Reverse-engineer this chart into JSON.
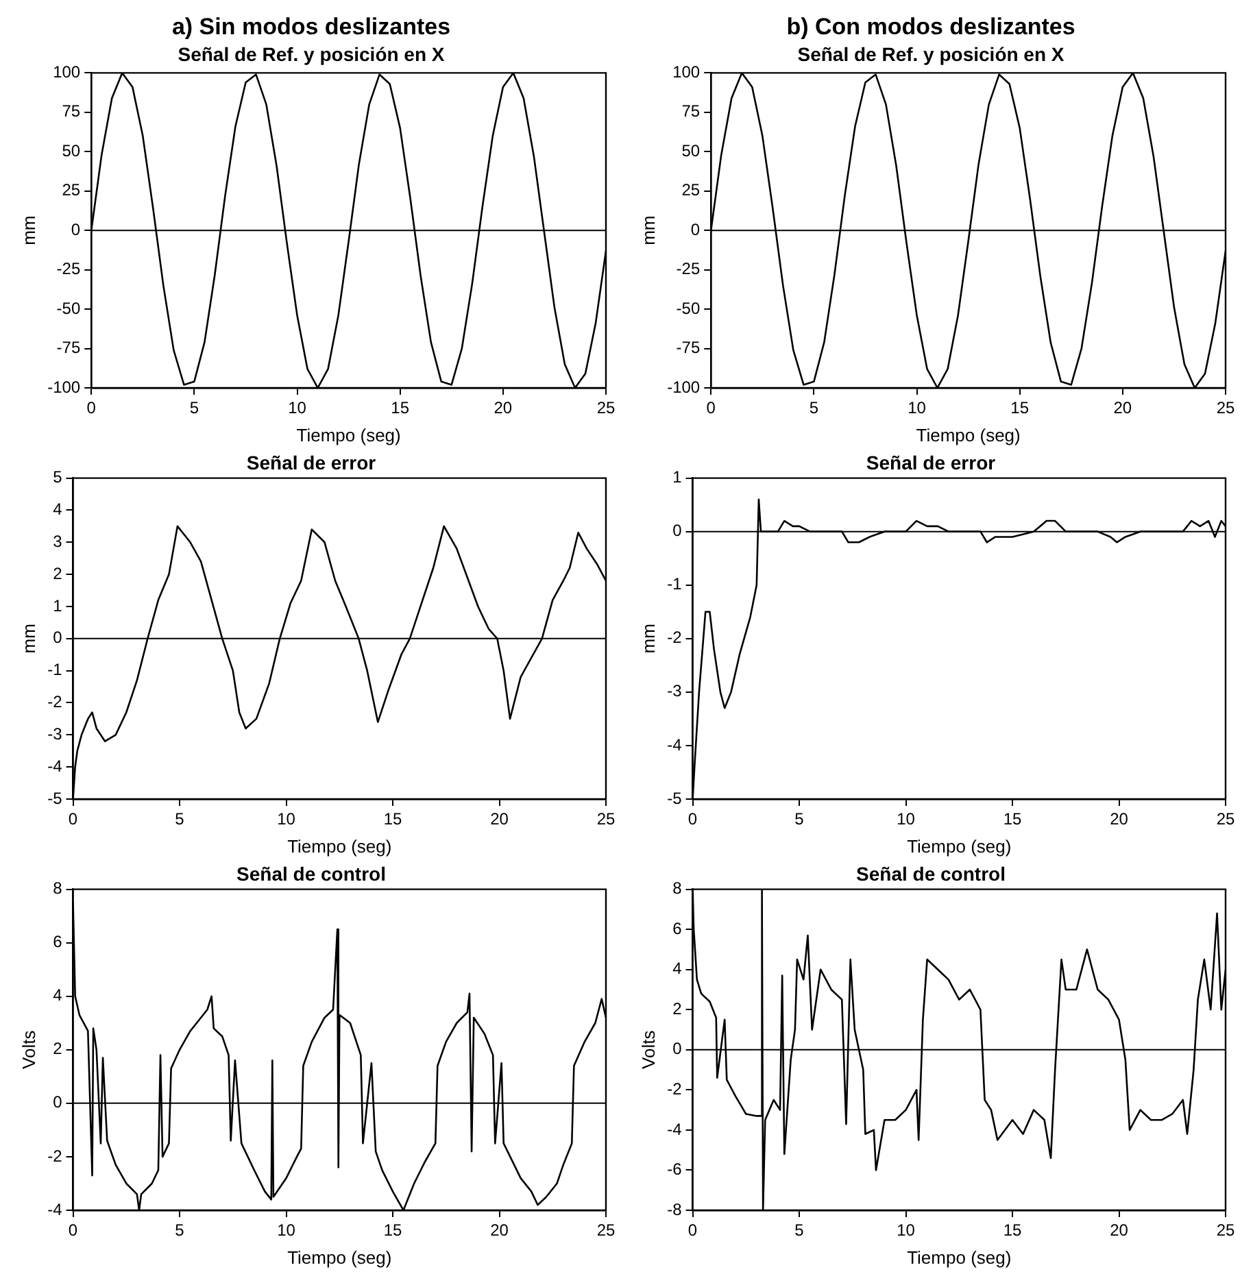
{
  "chart_data": [
    {
      "type": "line",
      "title": "a) Sin modos deslizantes",
      "subtitle": "Señal de Ref. y posición en X",
      "xlabel": "Tiempo (seg)",
      "ylabel": "mm",
      "xlim": [
        0,
        25
      ],
      "xticks": [
        0,
        5,
        10,
        15,
        20,
        25
      ],
      "ylim": [
        -100,
        100
      ],
      "yticks": [
        -100,
        -75,
        -50,
        -25,
        0,
        25,
        50,
        75,
        100
      ],
      "grid": false,
      "marker": "none",
      "line_style": "solid",
      "ref_lines": [
        {
          "axis": "y",
          "value": 0,
          "color": "#000000"
        }
      ],
      "x": [
        0,
        0.5,
        1,
        1.5,
        2,
        2.5,
        3,
        3.5,
        4,
        4.5,
        5,
        5.5,
        6,
        6.5,
        7,
        7.5,
        8,
        8.5,
        9,
        9.5,
        10,
        10.5,
        11,
        11.5,
        12,
        12.5,
        13,
        13.5,
        14,
        14.5,
        15,
        15.5,
        16,
        16.5,
        17,
        17.5,
        18,
        18.5,
        19,
        19.5,
        20,
        20.5,
        21,
        21.5,
        22,
        22.5,
        23,
        23.5,
        24,
        24.5,
        25
      ],
      "series": [
        {
          "color": "#000000",
          "values": [
            0,
            48,
            84,
            100,
            91,
            60,
            14,
            -35,
            -76,
            -98,
            -96,
            -71,
            -28,
            22,
            66,
            94,
            99,
            80,
            41,
            -8,
            -54,
            -88,
            -100,
            -88,
            -54,
            -7,
            42,
            80,
            99,
            93,
            65,
            20,
            -29,
            -71,
            -96,
            -98,
            -75,
            -34,
            15,
            60,
            91,
            100,
            84,
            47,
            -1,
            -49,
            -85,
            -100,
            -91,
            -59,
            -13
          ]
        }
      ]
    },
    {
      "type": "line",
      "title": "b) Con modos deslizantes",
      "subtitle": "Señal de Ref. y posición en X",
      "xlabel": "Tiempo (seg)",
      "ylabel": "mm",
      "xlim": [
        0,
        25
      ],
      "xticks": [
        0,
        5,
        10,
        15,
        20,
        25
      ],
      "ylim": [
        -100,
        100
      ],
      "yticks": [
        -100,
        -75,
        -50,
        -25,
        0,
        25,
        50,
        75,
        100
      ],
      "grid": false,
      "marker": "none",
      "line_style": "solid",
      "ref_lines": [
        {
          "axis": "y",
          "value": 0,
          "color": "#000000"
        }
      ],
      "x": [
        0,
        0.5,
        1,
        1.5,
        2,
        2.5,
        3,
        3.5,
        4,
        4.5,
        5,
        5.5,
        6,
        6.5,
        7,
        7.5,
        8,
        8.5,
        9,
        9.5,
        10,
        10.5,
        11,
        11.5,
        12,
        12.5,
        13,
        13.5,
        14,
        14.5,
        15,
        15.5,
        16,
        16.5,
        17,
        17.5,
        18,
        18.5,
        19,
        19.5,
        20,
        20.5,
        21,
        21.5,
        22,
        22.5,
        23,
        23.5,
        24,
        24.5,
        25
      ],
      "series": [
        {
          "color": "#000000",
          "values": [
            0,
            48,
            84,
            100,
            91,
            60,
            14,
            -35,
            -76,
            -98,
            -96,
            -71,
            -28,
            22,
            66,
            94,
            99,
            80,
            41,
            -8,
            -54,
            -88,
            -100,
            -88,
            -54,
            -7,
            42,
            80,
            99,
            93,
            65,
            20,
            -29,
            -71,
            -96,
            -98,
            -75,
            -34,
            15,
            60,
            91,
            100,
            84,
            47,
            -1,
            -49,
            -85,
            -100,
            -91,
            -59,
            -13
          ]
        }
      ]
    },
    {
      "type": "line",
      "title": "Señal de error",
      "xlabel": "Tiempo (seg)",
      "ylabel": "mm",
      "xlim": [
        0,
        25
      ],
      "xticks": [
        0,
        5,
        10,
        15,
        20,
        25
      ],
      "ylim": [
        -5,
        5
      ],
      "yticks": [
        -5,
        -4,
        -3,
        -2,
        -1,
        0,
        1,
        2,
        3,
        4,
        5
      ],
      "grid": false,
      "marker": "none",
      "line_style": "solid",
      "ref_lines": [
        {
          "axis": "y",
          "value": 0,
          "color": "#000000"
        }
      ],
      "x": [
        0,
        0.1,
        0.2,
        0.4,
        0.7,
        0.9,
        1.1,
        1.5,
        2,
        2.5,
        3,
        3.5,
        4,
        4.5,
        4.9,
        5.5,
        6,
        6.5,
        7,
        7.5,
        7.8,
        8.1,
        8.6,
        9.2,
        9.7,
        10.2,
        10.7,
        11.2,
        11.8,
        12.3,
        12.8,
        13.4,
        13.8,
        14.3,
        14.8,
        15.4,
        15.8,
        16.3,
        16.9,
        17.4,
        18,
        18.5,
        19,
        19.5,
        19.9,
        20.2,
        20.5,
        21,
        21.5,
        22,
        22.5,
        23,
        23.3,
        23.7,
        24.1,
        24.6,
        25
      ],
      "series": [
        {
          "color": "#000000",
          "values": [
            -5,
            -4,
            -3.5,
            -3,
            -2.5,
            -2.3,
            -2.8,
            -3.2,
            -3,
            -2.3,
            -1.3,
            0,
            1.2,
            2,
            3.5,
            3,
            2.4,
            1.2,
            0,
            -1,
            -2.3,
            -2.8,
            -2.5,
            -1.4,
            0,
            1.1,
            1.8,
            3.4,
            3,
            1.8,
            1,
            0,
            -1,
            -2.6,
            -1.6,
            -0.5,
            0,
            1,
            2.2,
            3.5,
            2.8,
            1.9,
            1,
            0.3,
            0,
            -1,
            -2.5,
            -1.2,
            -0.6,
            0,
            1.2,
            1.8,
            2.2,
            3.3,
            2.8,
            2.3,
            1.8
          ]
        }
      ]
    },
    {
      "type": "line",
      "title": "Señal de error",
      "xlabel": "Tiempo (seg)",
      "ylabel": "mm",
      "xlim": [
        0,
        25
      ],
      "xticks": [
        0,
        5,
        10,
        15,
        20,
        25
      ],
      "ylim": [
        -5,
        1
      ],
      "yticks": [
        -5,
        -4,
        -3,
        -2,
        -1,
        0,
        1
      ],
      "grid": false,
      "marker": "none",
      "line_style": "solid",
      "ref_lines": [
        {
          "axis": "y",
          "value": 0,
          "color": "#000000"
        }
      ],
      "x": [
        0,
        0.1,
        0.3,
        0.5,
        0.6,
        0.8,
        1,
        1.3,
        1.5,
        1.8,
        2.2,
        2.7,
        3,
        3.1,
        3.2,
        3.5,
        4,
        4.3,
        4.7,
        5,
        5.5,
        6,
        7,
        7.3,
        7.8,
        8.3,
        9,
        10,
        10.5,
        11,
        11.5,
        12,
        13,
        13.5,
        13.8,
        14.2,
        15,
        16,
        16.6,
        17,
        17.5,
        18,
        19,
        19.6,
        19.9,
        20.3,
        21,
        22,
        23,
        23.4,
        23.8,
        24.2,
        24.5,
        24.8,
        25
      ],
      "series": [
        {
          "color": "#000000",
          "values": [
            -5,
            -4.3,
            -3,
            -2,
            -1.5,
            -1.5,
            -2.2,
            -3,
            -3.3,
            -3,
            -2.3,
            -1.6,
            -1,
            0.6,
            0,
            0,
            0,
            0.2,
            0.1,
            0.1,
            0,
            0,
            0,
            -0.2,
            -0.2,
            -0.1,
            0,
            0,
            0.2,
            0.1,
            0.1,
            0,
            0,
            0,
            -0.2,
            -0.1,
            -0.1,
            0,
            0.2,
            0.2,
            0,
            0,
            0,
            -0.1,
            -0.2,
            -0.1,
            0,
            0,
            0,
            0.2,
            0.1,
            0.2,
            -0.1,
            0.2,
            0.1
          ]
        }
      ]
    },
    {
      "type": "line",
      "title": "Señal de control",
      "xlabel": "Tiempo (seg)",
      "ylabel": "Volts",
      "xlim": [
        0,
        25
      ],
      "xticks": [
        0,
        5,
        10,
        15,
        20,
        25
      ],
      "ylim": [
        -4,
        8
      ],
      "yticks": [
        -4,
        -2,
        0,
        2,
        4,
        6,
        8
      ],
      "grid": false,
      "marker": "none",
      "line_style": "solid",
      "ref_lines": [
        {
          "axis": "y",
          "value": 0,
          "color": "#000000"
        }
      ],
      "x": [
        0,
        0.1,
        0.3,
        0.7,
        0.9,
        0.95,
        1.1,
        1.3,
        1.4,
        1.6,
        2,
        2.5,
        3,
        3.1,
        3.2,
        3.7,
        4,
        4.1,
        4.2,
        4.5,
        4.6,
        5,
        5.5,
        6,
        6.3,
        6.5,
        6.6,
        7,
        7.3,
        7.4,
        7.6,
        7.9,
        8.5,
        9,
        9.3,
        9.35,
        9.4,
        10,
        10.5,
        10.7,
        10.8,
        11.2,
        11.8,
        12.2,
        12.4,
        12.45,
        12.5,
        13,
        13.5,
        13.6,
        14,
        14.2,
        14.5,
        15,
        15.5,
        16,
        16.5,
        17,
        17.1,
        17.5,
        18,
        18.5,
        18.6,
        18.7,
        18.8,
        19.3,
        19.7,
        19.8,
        20.1,
        20.2,
        21,
        21.5,
        21.8,
        22.2,
        22.7,
        23,
        23.4,
        23.5,
        24,
        24.5,
        24.8,
        25
      ],
      "series": [
        {
          "color": "#000000",
          "values": [
            7.5,
            4,
            3.3,
            2.7,
            -2.7,
            2.8,
            2,
            -1.5,
            1.7,
            -1.4,
            -2.3,
            -3,
            -3.4,
            -4,
            -3.4,
            -3,
            -2.5,
            1.8,
            -2,
            -1.5,
            1.3,
            2,
            2.7,
            3.2,
            3.5,
            4,
            2.8,
            2.5,
            1.8,
            -1.4,
            1.6,
            -1.5,
            -2.5,
            -3.3,
            -3.6,
            1.6,
            -3.5,
            -2.8,
            -2,
            -1.7,
            1.4,
            2.3,
            3.2,
            3.5,
            6.5,
            -2.4,
            3.3,
            3,
            1.8,
            -1.5,
            1.5,
            -1.8,
            -2.5,
            -3.3,
            -4,
            -3,
            -2.2,
            -1.5,
            1.4,
            2.3,
            3,
            3.4,
            4.1,
            -1.8,
            3.2,
            2.6,
            1.8,
            -1.5,
            1.5,
            -1.5,
            -2.8,
            -3.3,
            -3.8,
            -3.5,
            -3,
            -2.3,
            -1.5,
            1.4,
            2.3,
            3,
            3.9,
            3.2
          ]
        }
      ]
    },
    {
      "type": "line",
      "title": "Señal de control",
      "xlabel": "Tiempo (seg)",
      "ylabel": "Volts",
      "xlim": [
        0,
        25
      ],
      "xticks": [
        0,
        5,
        10,
        15,
        20,
        25
      ],
      "ylim": [
        -8,
        8
      ],
      "yticks": [
        -8,
        -6,
        -4,
        -2,
        0,
        2,
        4,
        6,
        8
      ],
      "grid": false,
      "marker": "none",
      "line_style": "solid",
      "ref_lines": [
        {
          "axis": "y",
          "value": 0,
          "color": "#000000"
        }
      ],
      "x": [
        0,
        0.05,
        0.2,
        0.4,
        0.8,
        1.1,
        1.15,
        1.5,
        1.6,
        2,
        2.5,
        3,
        3.2,
        3.25,
        3.3,
        3.4,
        3.8,
        4.1,
        4.2,
        4.3,
        4.6,
        4.8,
        4.9,
        5.2,
        5.4,
        5.6,
        6,
        6.5,
        7,
        7.2,
        7.4,
        7.6,
        8,
        8.1,
        8.5,
        8.6,
        9,
        9.5,
        10,
        10.5,
        10.6,
        10.8,
        11,
        11.5,
        12,
        12.5,
        13,
        13.5,
        13.7,
        14,
        14.3,
        15,
        15.5,
        16,
        16.5,
        16.8,
        17,
        17.3,
        17.5,
        18,
        18.5,
        19,
        19.5,
        20,
        20.3,
        20.5,
        21,
        21.5,
        22,
        22.5,
        23,
        23.2,
        23.5,
        23.7,
        24,
        24.3,
        24.6,
        24.8,
        25
      ],
      "series": [
        {
          "color": "#000000",
          "values": [
            8,
            6,
            3.5,
            2.8,
            2.4,
            1.6,
            -1.4,
            1.5,
            -1.5,
            -2.3,
            -3.2,
            -3.3,
            -3.3,
            8,
            -8,
            -3.5,
            -2.5,
            -3,
            3.7,
            -5.2,
            -0.5,
            1,
            4.5,
            3.5,
            5.7,
            1,
            4,
            3,
            2.5,
            -3.7,
            4.5,
            1,
            -1,
            -4.2,
            -4,
            -6,
            -3.5,
            -3.5,
            -3,
            -2,
            -4.5,
            1.5,
            4.5,
            4,
            3.5,
            2.5,
            3,
            2,
            -2.5,
            -3,
            -4.5,
            -3.5,
            -4.2,
            -3,
            -3.5,
            -5.4,
            -1,
            4.5,
            3,
            3,
            5,
            3,
            2.5,
            1.5,
            -0.5,
            -4,
            -3,
            -3.5,
            -3.5,
            -3.2,
            -2.5,
            -4.2,
            -1,
            2.5,
            4.5,
            2,
            6.8,
            2,
            4
          ]
        }
      ]
    }
  ]
}
